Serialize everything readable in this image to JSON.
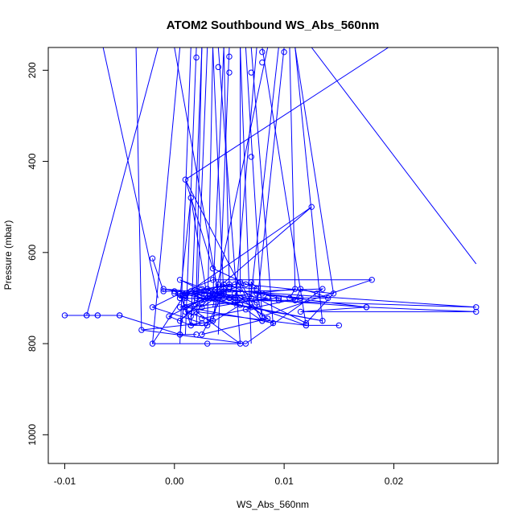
{
  "chart_data": {
    "type": "line",
    "title": "ATOM2 Southbound WS_Abs_560nm",
    "xlabel": "WS_Abs_560nm",
    "ylabel": "Pressure (mbar)",
    "xlim": [
      -0.0115,
      0.0295
    ],
    "ylim": [
      1063,
      150
    ],
    "y_reversed": true,
    "x_ticks": [
      -0.01,
      0.0,
      0.01,
      0.02
    ],
    "x_tick_labels": [
      "-0.01",
      "0.00",
      "0.01",
      "0.02"
    ],
    "y_ticks": [
      200,
      400,
      600,
      800,
      1000
    ],
    "y_tick_labels": [
      "200",
      "400",
      "600",
      "800",
      "1000"
    ],
    "grid": false,
    "legend": "none",
    "color": "#0000ff",
    "marker": "open-circle",
    "series": [
      {
        "x": [
          -0.01,
          -0.008,
          -0.007,
          -0.005,
          -0.007,
          -0.008,
          -0.005,
          0.0005,
          0.002,
          0.0005,
          0.001,
          -0.002,
          0.003,
          0.006,
          0.002,
          0.012,
          0.015,
          0.012,
          0.0005,
          0.004,
          -0.001,
          0.0085,
          0.001,
          0.0035,
          0.0015,
          0.003,
          0.006,
          0.006,
          0.003,
          0.0005,
          0.0045,
          0.0025,
          0.0085,
          0.007,
          0.001,
          0.0035,
          0.0075,
          0.005,
          0.0045,
          0.0015,
          0.002,
          0.001,
          0.0045,
          0.0065,
          0.0145,
          0.012,
          0.005,
          0.0005,
          -0.002,
          0.0025,
          -0.003,
          0.0065,
          0.0135,
          0.0005,
          0.0055,
          0.006,
          0.008,
          0.009,
          0.0055,
          0.0075,
          0.0025,
          0.0025,
          0.005,
          0.0025,
          0.0,
          0.0005,
          0.0125,
          0.0005,
          0.004,
          0.0035,
          0.004,
          0.006,
          0.0175,
          0.0115,
          0.0275,
          0.0175,
          0.0075,
          0.008,
          0.018,
          0.0035,
          0.0005,
          0.001,
          0.0095,
          0.0055,
          0.003,
          0.0275,
          0.0005,
          0.0015,
          0.003,
          0.001,
          0.008,
          0.0065,
          0.0025,
          0.0115,
          0.0045,
          -0.0005,
          0.0015,
          0.0005,
          0.0135,
          0.002,
          0.0055,
          0.0035,
          0.0025
        ],
        "y": [
          738,
          738,
          738,
          738,
          738,
          738,
          738,
          780,
          780,
          780,
          690,
          800,
          800,
          800,
          730,
          760,
          760,
          760,
          660,
          700,
          680,
          700,
          730,
          750,
          760,
          760,
          715,
          715,
          700,
          720,
          690,
          780,
          745,
          720,
          440,
          635,
          680,
          675,
          670,
          740,
          685,
          695,
          685,
          670,
          690,
          755,
          670,
          690,
          720,
          755,
          770,
          800,
          680,
          690,
          670,
          665,
          750,
          755,
          690,
          710,
          680,
          710,
          680,
          720,
          690,
          700,
          500,
          750,
          670,
          750,
          700,
          700,
          720,
          730,
          730,
          720,
          690,
          740,
          660,
          660,
          690,
          720,
          700,
          710,
          680,
          720,
          700,
          480,
          700,
          720,
          750,
          725,
          745,
          700,
          680,
          740,
          760,
          690,
          750,
          700,
          700,
          690,
          690
        ]
      },
      {
        "x": [
          -0.002,
          -0.001,
          0.0,
          0.001,
          0.0015,
          0.002,
          0.002,
          0.003,
          0.003,
          0.0035,
          0.004,
          0.0045,
          0.005,
          0.005,
          0.006,
          0.007,
          0.007,
          0.008,
          0.0095,
          0.0095,
          0.011,
          0.0115,
          0.013,
          0.014,
          0.0105,
          0.011,
          0.0035,
          0.0035
        ],
        "y": [
          613,
          685,
          685,
          700,
          685,
          685,
          690,
          700,
          700,
          690,
          700,
          700,
          700,
          700,
          700,
          700,
          665,
          690,
          700,
          705,
          705,
          680,
          690,
          700,
          700,
          680,
          700,
          700
        ]
      }
    ],
    "offscale_points": [
      {
        "x": 0.002,
        "y": 172
      },
      {
        "x": 0.004,
        "y": 193
      },
      {
        "x": 0.005,
        "y": 205
      },
      {
        "x": 0.005,
        "y": 170
      },
      {
        "x": 0.007,
        "y": 205
      },
      {
        "x": 0.008,
        "y": 183
      },
      {
        "x": 0.008,
        "y": 160
      },
      {
        "x": 0.01,
        "y": 160
      },
      {
        "x": 0.007,
        "y": 390
      }
    ],
    "segments_from_top": [
      [
        -0.0035,
        150,
        -0.003,
        770
      ],
      [
        0.0005,
        150,
        -0.002,
        800
      ],
      [
        0.0015,
        150,
        0.0005,
        800
      ],
      [
        0.002,
        150,
        0.001,
        780
      ],
      [
        0.0025,
        150,
        0.0015,
        760
      ],
      [
        0.003,
        150,
        0.002,
        760
      ],
      [
        0.0035,
        150,
        0.003,
        760
      ],
      [
        0.0035,
        150,
        0.0045,
        700
      ],
      [
        0.004,
        150,
        0.006,
        800
      ],
      [
        0.0045,
        150,
        0.005,
        670
      ],
      [
        0.005,
        150,
        0.004,
        780
      ],
      [
        0.006,
        150,
        0.007,
        800
      ],
      [
        0.0065,
        150,
        0.008,
        745
      ],
      [
        0.007,
        150,
        0.009,
        760
      ],
      [
        0.0075,
        150,
        0.0055,
        720
      ],
      [
        0.008,
        150,
        0.012,
        760
      ],
      [
        0.0085,
        150,
        0.0035,
        720
      ],
      [
        0.0095,
        150,
        0.007,
        690
      ],
      [
        0.01,
        150,
        0.0075,
        720
      ],
      [
        0.0105,
        150,
        0.011,
        680
      ],
      [
        0.011,
        150,
        0.0145,
        690
      ],
      [
        0.011,
        150,
        0.0135,
        755
      ],
      [
        0.0125,
        150,
        0.0275,
        625
      ],
      [
        0.0195,
        150,
        0.001,
        440
      ],
      [
        0.0,
        150,
        0.004,
        690
      ],
      [
        -0.0065,
        150,
        -0.0015,
        700
      ],
      [
        -0.0015,
        150,
        -0.008,
        738
      ],
      [
        0.0025,
        150,
        0.002,
        685
      ],
      [
        0.0045,
        150,
        0.0035,
        700
      ],
      [
        0.006,
        150,
        0.006,
        690
      ]
    ]
  }
}
